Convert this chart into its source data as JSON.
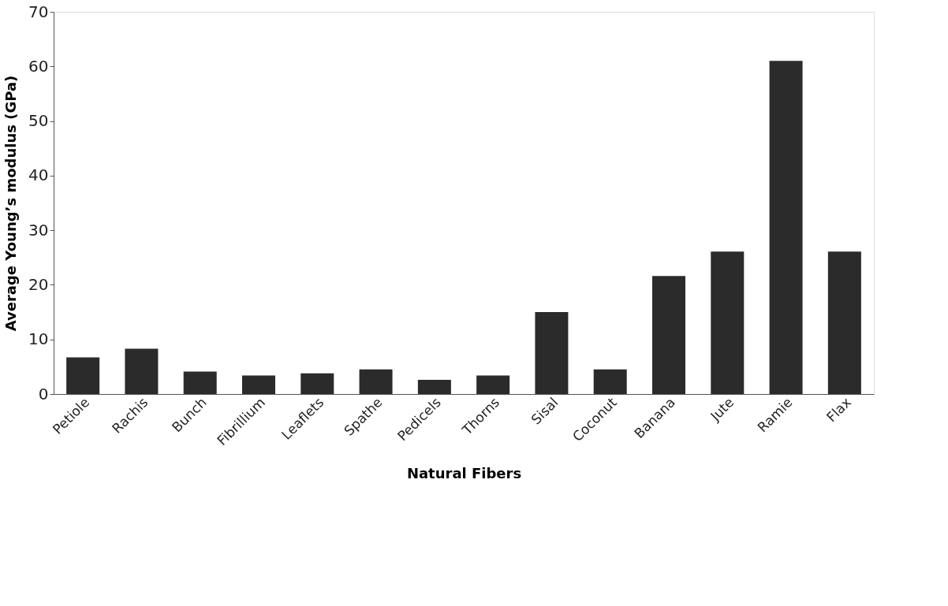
{
  "chart_data": {
    "type": "bar",
    "xlabel": "Natural Fibers",
    "ylabel": "Average Young’s modulus (GPa)",
    "categories": [
      "Petiole",
      "Rachis",
      "Bunch",
      "Fibrillium",
      "Leaflets",
      "Spathe",
      "Pedicels",
      "Thorns",
      "Sisal",
      "Coconut",
      "Banana",
      "Jute",
      "Ramie",
      "Flax"
    ],
    "values": [
      6.7,
      8.3,
      4.1,
      3.4,
      3.8,
      4.5,
      2.6,
      3.4,
      15.0,
      4.5,
      21.6,
      26.1,
      61.0,
      26.1
    ],
    "color": "#2b2b2b",
    "ylim": [
      0,
      70
    ],
    "yticks": [
      0,
      10,
      20,
      30,
      40,
      50,
      60,
      70
    ],
    "grid": false
  }
}
